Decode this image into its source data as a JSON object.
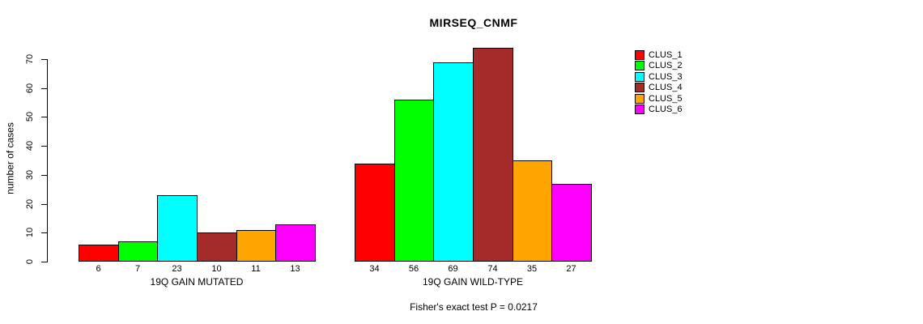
{
  "chart_data": {
    "type": "bar",
    "title": "MIRSEQ_CNMF",
    "ylabel": "number of cases",
    "ylim": [
      0,
      70
    ],
    "yticks": [
      0,
      10,
      20,
      30,
      40,
      50,
      60,
      70
    ],
    "grid": false,
    "legend_position": "right",
    "categories": [
      "19Q GAIN MUTATED",
      "19Q GAIN WILD-TYPE"
    ],
    "series": [
      {
        "name": "CLUS_1",
        "color": "#FF0000",
        "values": [
          6,
          34
        ]
      },
      {
        "name": "CLUS_2",
        "color": "#00FF00",
        "values": [
          7,
          56
        ]
      },
      {
        "name": "CLUS_3",
        "color": "#00FFFF",
        "values": [
          23,
          69
        ]
      },
      {
        "name": "CLUS_4",
        "color": "#A52A2A",
        "values": [
          10,
          74
        ]
      },
      {
        "name": "CLUS_5",
        "color": "#FFA500",
        "values": [
          11,
          35
        ]
      },
      {
        "name": "CLUS_6",
        "color": "#FF00FF",
        "values": [
          13,
          27
        ]
      }
    ],
    "bar_value_labels": [
      [
        6,
        7,
        23,
        10,
        11,
        13
      ],
      [
        34,
        56,
        69,
        74,
        35,
        27
      ]
    ],
    "annotation": "Fisher's exact test P = 0.0217",
    "axis_color": "#000000",
    "bar_border_color": "#000000"
  }
}
